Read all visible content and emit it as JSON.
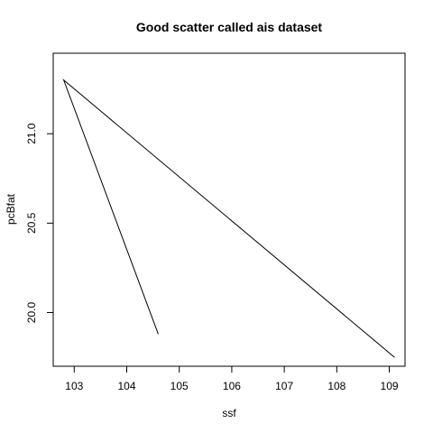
{
  "chart_data": {
    "type": "line",
    "title": "Good scatter called ais dataset",
    "xlabel": "ssf",
    "ylabel": "pcBfat",
    "xlim": [
      102.6,
      109.3
    ],
    "ylim": [
      19.7,
      21.45
    ],
    "x_ticks": [
      103,
      104,
      105,
      106,
      107,
      108,
      109
    ],
    "y_ticks": [
      20.0,
      20.5,
      21.0
    ],
    "x_tick_labels": [
      "103",
      "104",
      "105",
      "106",
      "107",
      "108",
      "109"
    ],
    "y_tick_labels": [
      "20.0",
      "20.5",
      "21.0"
    ],
    "grid": false,
    "series": [
      {
        "x": [
          104.6,
          102.8,
          109.1
        ],
        "y": [
          19.88,
          21.3,
          19.75
        ]
      }
    ],
    "colors": {
      "line": "#000000",
      "axis": "#000000",
      "background": "#ffffff"
    }
  }
}
